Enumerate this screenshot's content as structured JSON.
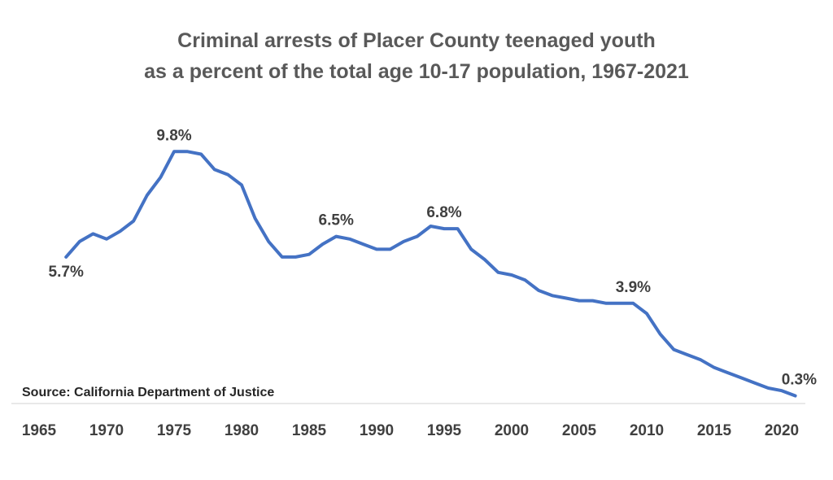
{
  "chart_data": {
    "type": "line",
    "title": "Criminal arrests of Placer County teenaged youth",
    "subtitle": "as a percent of the total age 10-17 population, 1967-2021",
    "xlabel": "",
    "ylabel": "",
    "xlim": [
      1965,
      2022
    ],
    "ylim": [
      0,
      10.5
    ],
    "x_ticks": [
      1965,
      1970,
      1975,
      1980,
      1985,
      1990,
      1995,
      2000,
      2005,
      2010,
      2015,
      2020
    ],
    "grid": false,
    "legend": "none",
    "source": "Source: California  Department of Justice",
    "series": [
      {
        "color": "#4472C4",
        "x": [
          1967,
          1968,
          1969,
          1970,
          1971,
          1972,
          1973,
          1974,
          1975,
          1976,
          1977,
          1978,
          1979,
          1980,
          1981,
          1982,
          1983,
          1984,
          1985,
          1986,
          1987,
          1988,
          1989,
          1990,
          1991,
          1992,
          1993,
          1994,
          1995,
          1996,
          1997,
          1998,
          1999,
          2000,
          2001,
          2002,
          2003,
          2004,
          2005,
          2006,
          2007,
          2008,
          2009,
          2010,
          2011,
          2012,
          2013,
          2014,
          2015,
          2016,
          2017,
          2018,
          2019,
          2020,
          2021
        ],
        "values": [
          5.7,
          6.3,
          6.6,
          6.4,
          6.7,
          7.1,
          8.1,
          8.8,
          9.8,
          9.8,
          9.7,
          9.1,
          8.9,
          8.5,
          7.2,
          6.3,
          5.7,
          5.7,
          5.8,
          6.2,
          6.5,
          6.4,
          6.2,
          6.0,
          6.0,
          6.3,
          6.5,
          6.9,
          6.8,
          6.8,
          6.0,
          5.6,
          5.1,
          5.0,
          4.8,
          4.4,
          4.2,
          4.1,
          4.0,
          4.0,
          3.9,
          3.9,
          3.9,
          3.5,
          2.7,
          2.1,
          1.9,
          1.7,
          1.4,
          1.2,
          1.0,
          0.8,
          0.6,
          0.5,
          0.3
        ]
      }
    ],
    "annotations": [
      {
        "x": 1967,
        "y": 5.7,
        "text": "5.7%",
        "position": "below"
      },
      {
        "x": 1975,
        "y": 9.8,
        "text": "9.8%",
        "position": "above"
      },
      {
        "x": 1987,
        "y": 6.5,
        "text": "6.5%",
        "position": "above"
      },
      {
        "x": 1995,
        "y": 6.8,
        "text": "6.8%",
        "position": "above"
      },
      {
        "x": 2009,
        "y": 3.9,
        "text": "3.9%",
        "position": "above"
      },
      {
        "x": 2021,
        "y": 0.3,
        "text": "0.3%",
        "position": "above"
      }
    ]
  }
}
